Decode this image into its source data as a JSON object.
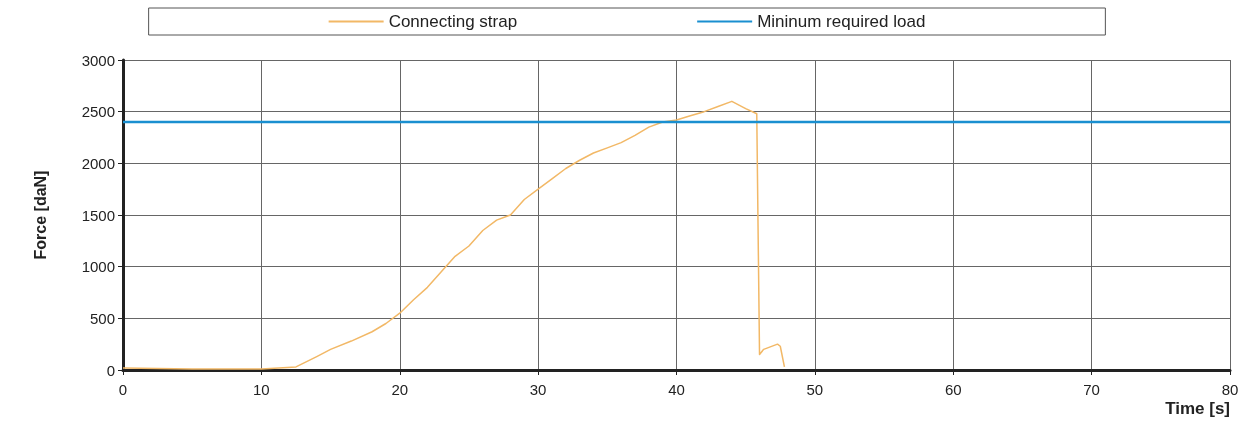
{
  "chart_data": {
    "type": "line",
    "xlabel": "Time [s]",
    "ylabel": "Force [daN]",
    "xlim": [
      0,
      80
    ],
    "xticks": [
      0,
      10,
      20,
      30,
      40,
      50,
      60,
      70,
      80
    ],
    "ylim": [
      0,
      3000
    ],
    "yticks": [
      0,
      500,
      1000,
      1500,
      2000,
      2500,
      3000
    ],
    "grid": true,
    "legend": "top",
    "marker": "none",
    "line_style": "solid",
    "series": [
      {
        "name": "Connecting strap",
        "color": "#f2b866",
        "x": [
          0,
          5,
          10,
          12.5,
          14,
          15,
          16.5,
          18,
          19,
          20,
          21,
          22,
          23,
          24,
          25,
          26,
          27,
          28,
          29,
          30,
          31,
          32,
          33,
          34,
          35,
          36,
          37,
          38,
          39,
          40,
          41,
          42,
          43,
          44,
          45,
          45.8,
          46,
          46.3,
          47.3,
          47.5,
          47.8
        ],
        "values": [
          20,
          10,
          10,
          30,
          130,
          200,
          280,
          370,
          450,
          550,
          680,
          800,
          950,
          1100,
          1200,
          1350,
          1450,
          1500,
          1650,
          1750,
          1850,
          1950,
          2030,
          2100,
          2150,
          2200,
          2270,
          2350,
          2400,
          2420,
          2460,
          2500,
          2550,
          2600,
          2530,
          2480,
          150,
          200,
          250,
          230,
          30
        ]
      },
      {
        "name": "Mininum required load",
        "color": "#1a8fd0",
        "x": [
          0,
          80
        ],
        "values": [
          2400,
          2400
        ]
      }
    ]
  }
}
